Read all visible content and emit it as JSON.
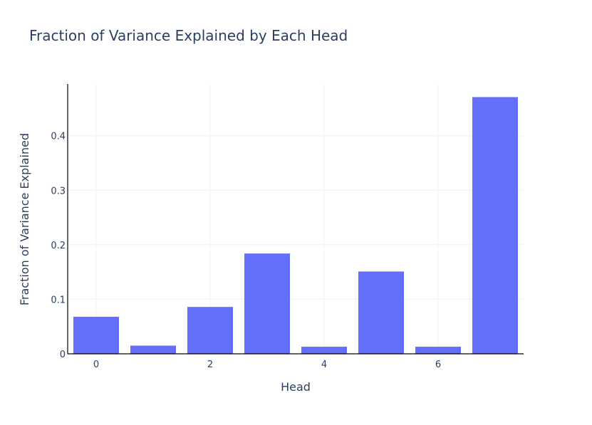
{
  "chart_data": {
    "type": "bar",
    "title": "Fraction of Variance Explained by Each Head",
    "xlabel": "Head",
    "ylabel": "Fraction of Variance Explained",
    "categories": [
      0,
      1,
      2,
      3,
      4,
      5,
      6,
      7
    ],
    "values": [
      0.068,
      0.015,
      0.086,
      0.184,
      0.013,
      0.151,
      0.013,
      0.471
    ],
    "xticks": [
      0,
      2,
      4,
      6
    ],
    "yticks": [
      0,
      0.1,
      0.2,
      0.3,
      0.4
    ],
    "ylim": [
      0,
      0.495
    ],
    "xlim": [
      -0.5,
      7.5
    ],
    "grid": true,
    "colors": {
      "bar": "#636efa",
      "grid": "#ebf0f8",
      "text": "#2a3f5f",
      "axis": "#000000"
    }
  }
}
